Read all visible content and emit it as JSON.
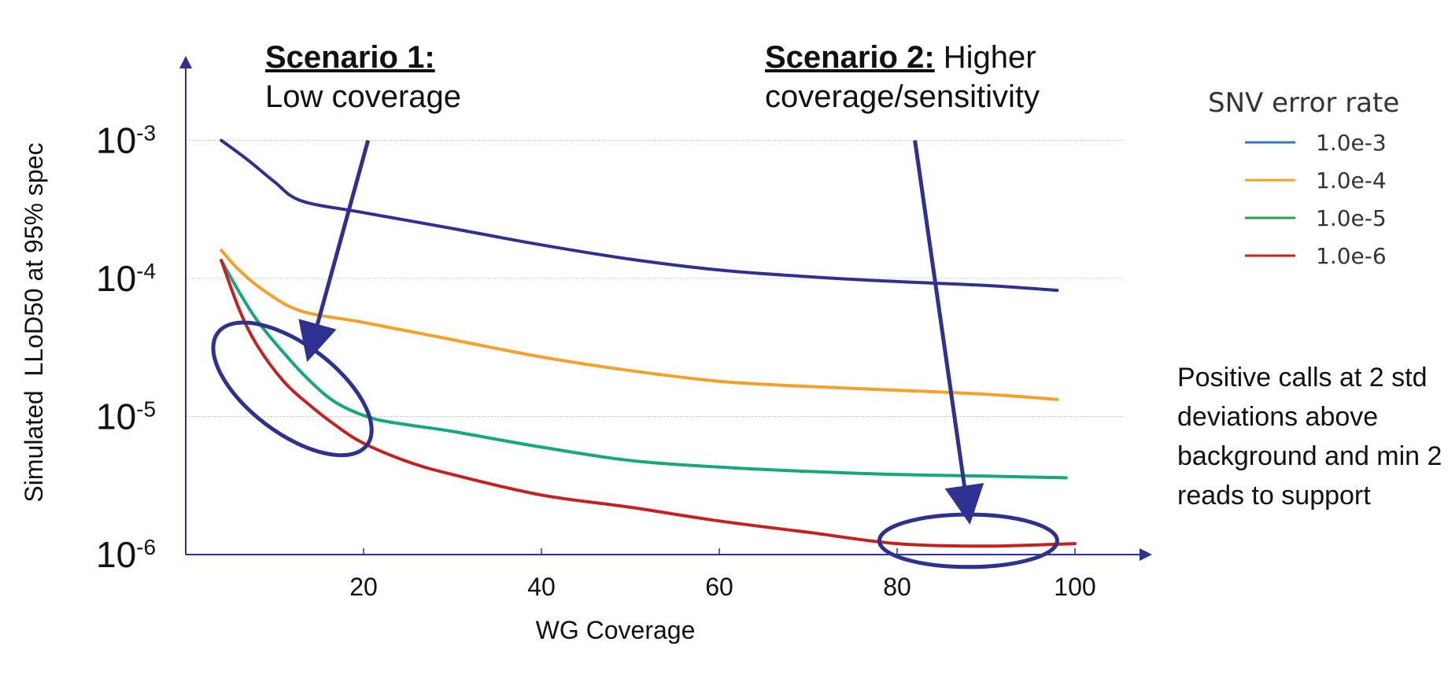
{
  "chart_data": {
    "type": "line",
    "title": "",
    "xlabel": "WG Coverage",
    "ylabel": "Simulated  LLoD50 at 95% spec",
    "xlim": [
      0,
      110
    ],
    "ylim_log10": [
      -6,
      -2.5
    ],
    "yscale": "log",
    "x_ticks": [
      20,
      40,
      60,
      80,
      100
    ],
    "x_tick_labels": [
      "20",
      "40",
      "60",
      "80",
      "100"
    ],
    "y_ticks": [
      {
        "exp": -3,
        "base": "10",
        "sup": "-3"
      },
      {
        "exp": -4,
        "base": "10",
        "sup": "-4"
      },
      {
        "exp": -5,
        "base": "10",
        "sup": "-5"
      },
      {
        "exp": -6,
        "base": "10",
        "sup": "-6"
      }
    ],
    "grid": true,
    "legend_title": "SNV error rate",
    "legend_position": "top-right",
    "series": [
      {
        "name": "1.0e-3",
        "color": "#2e3192",
        "legend_color": "#3a78b5",
        "x": [
          4,
          7,
          10,
          13,
          20,
          30,
          40,
          50,
          60,
          70,
          80,
          90,
          98
        ],
        "y": [
          0.001,
          0.00072,
          0.0005,
          0.000365,
          0.0003,
          0.00023,
          0.000175,
          0.000138,
          0.000115,
          0.000103,
          9.5e-05,
          8.9e-05,
          8.2e-05
        ]
      },
      {
        "name": "1.0e-4",
        "color": "#f5a028",
        "legend_color": "#f5a028",
        "x": [
          4,
          6,
          9,
          13,
          20,
          30,
          40,
          50,
          60,
          70,
          80,
          90,
          98
        ],
        "y": [
          0.00016,
          0.000115,
          8e-05,
          5.8e-05,
          4.8e-05,
          3.6e-05,
          2.7e-05,
          2.15e-05,
          1.8e-05,
          1.65e-05,
          1.55e-05,
          1.45e-05,
          1.33e-05
        ]
      },
      {
        "name": "1.0e-5",
        "color": "#14a87a",
        "legend_color": "#27a24a",
        "x": [
          4,
          6,
          8,
          11,
          14,
          17,
          21,
          25,
          30,
          40,
          50,
          60,
          70,
          80,
          90,
          99
        ],
        "y": [
          0.000135,
          8e-05,
          5e-05,
          2.9e-05,
          1.8e-05,
          1.25e-05,
          9.7e-06,
          8.7e-06,
          7.8e-06,
          6e-06,
          4.8e-06,
          4.3e-06,
          4e-06,
          3.8e-06,
          3.7e-06,
          3.6e-06
        ]
      },
      {
        "name": "1.0e-6",
        "color": "#c8201e",
        "legend_color": "#c8201e",
        "x": [
          4,
          6,
          8,
          11,
          14,
          17,
          20,
          25,
          30,
          40,
          50,
          60,
          70,
          80,
          90,
          100
        ],
        "y": [
          0.000135,
          6e-05,
          3.3e-05,
          1.8e-05,
          1.2e-05,
          8.5e-06,
          6.4e-06,
          4.7e-06,
          3.8e-06,
          2.7e-06,
          2.2e-06,
          1.75e-06,
          1.45e-06,
          1.2e-06,
          1.15e-06,
          1.2e-06
        ]
      }
    ],
    "annotations": [
      {
        "id": "scenario-1",
        "heading": "Scenario 1:",
        "text": "Low coverage",
        "arrow_from": {
          "x": 20.5,
          "y": 0.001
        },
        "arrow_to": {
          "x": 14,
          "y": 3e-05
        },
        "ellipse": {
          "cx": 12,
          "cy_log10": -4.8,
          "rx_data": 10.5,
          "ry_log10": 0.32,
          "rotate_deg": 37
        }
      },
      {
        "id": "scenario-2",
        "heading": "Scenario 2:",
        "text": "Higher",
        "text2": "coverage/sensitivity",
        "arrow_from": {
          "x": 82,
          "y": 0.001
        },
        "arrow_to": {
          "x": 88,
          "y": 2e-06
        },
        "ellipse": {
          "cx": 88,
          "cy_log10": -5.9,
          "rx_data": 10.0,
          "ry_log10": 0.19,
          "rotate_deg": 0
        }
      }
    ],
    "note": "Positive calls at 2 std deviations above background and min 2 reads to support"
  }
}
